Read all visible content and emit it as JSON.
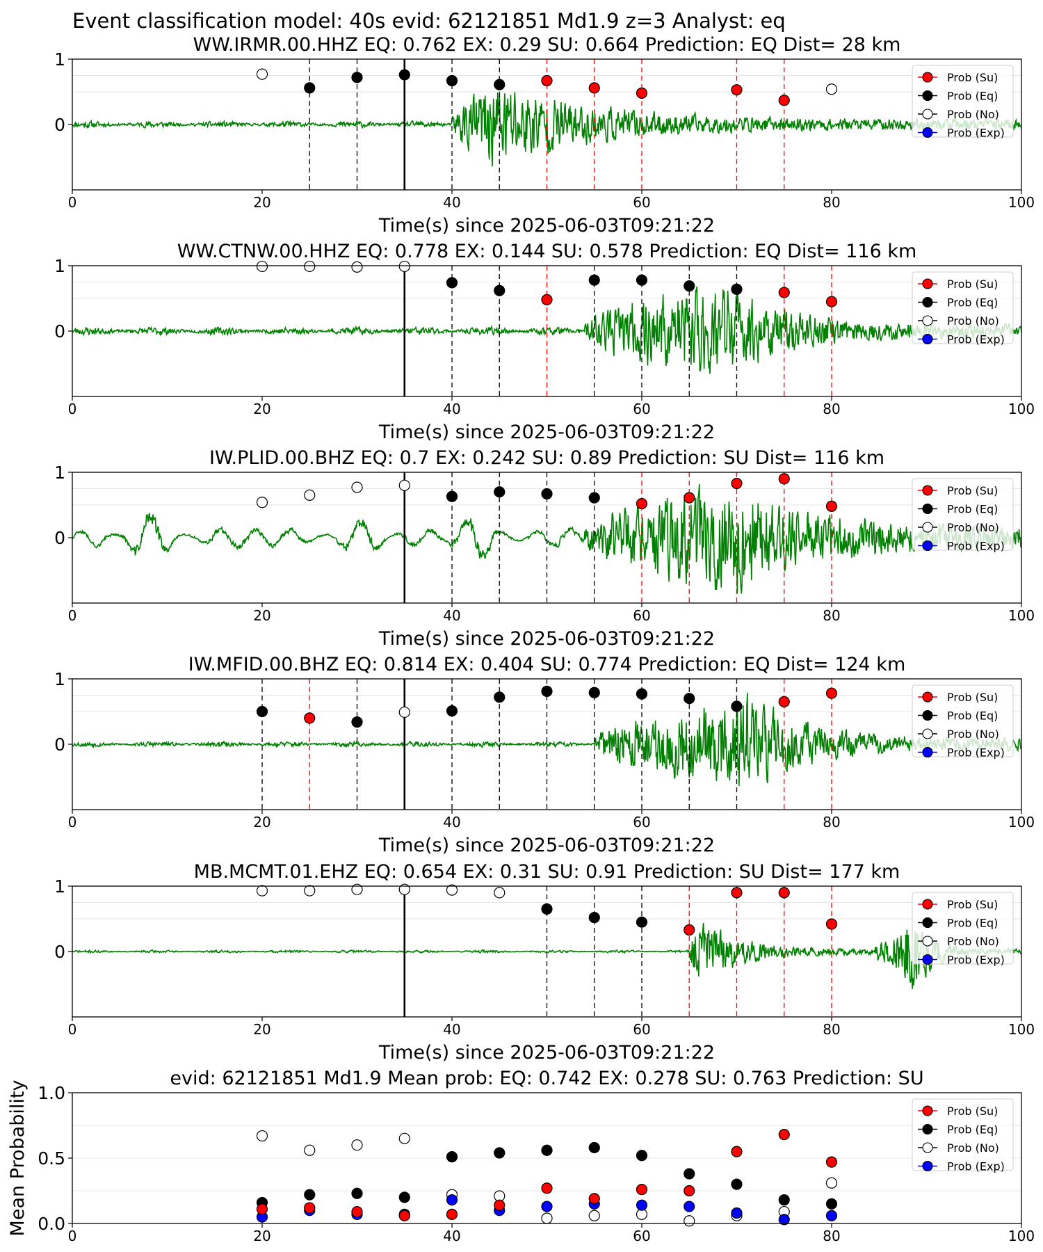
{
  "suptitle": "Event classification model: 40s evid: 62121851 Md1.9 z=3 Analyst: eq",
  "colors": {
    "trace": "#008000",
    "su": "#ff0000",
    "eq": "#000000",
    "no": "#ffffff",
    "exp": "#0000ff",
    "dashed_eq": "#000000",
    "dashed_su": "#ff0000"
  },
  "legend_labels": [
    "Prob (Su)",
    "Prob (Eq)",
    "Prob (No)",
    "Prob (Exp)"
  ],
  "x_ticks": [
    "0",
    "20",
    "40",
    "60",
    "80",
    "100"
  ],
  "chart_data": [
    {
      "type": "line",
      "title": "WW.IRMR.00.HHZ   EQ: 0.762  EX: 0.29  SU: 0.664   Prediction: EQ    Dist= 28 km",
      "xlabel": "Time(s) since 2025-06-03T09:21:22",
      "xlim": [
        0,
        100
      ],
      "y_ticks": [
        "1",
        "0"
      ],
      "ylim": [
        -1,
        1
      ],
      "legend": "upper right",
      "arrival": 35,
      "waveform": {
        "onset": 40,
        "peak": 45,
        "amp": 0.9,
        "decay": 9,
        "pre_noise": 0.05,
        "coda": 0.12,
        "seed": 11
      },
      "windows": [
        {
          "t": 25,
          "cls": "eq",
          "p": 0.56
        },
        {
          "t": 30,
          "cls": "eq",
          "p": 0.72
        },
        {
          "t": 35,
          "cls": "eq",
          "p": 0.76
        },
        {
          "t": 40,
          "cls": "eq",
          "p": 0.67
        },
        {
          "t": 45,
          "cls": "eq",
          "p": 0.61
        },
        {
          "t": 50,
          "cls": "su",
          "p": 0.67
        },
        {
          "t": 55,
          "cls": "su",
          "p": 0.56
        },
        {
          "t": 60,
          "cls": "su",
          "p": 0.48
        },
        {
          "t": 70,
          "cls": "su",
          "p": 0.53
        },
        {
          "t": 75,
          "cls": "su",
          "p": 0.37
        }
      ],
      "no_points": [
        {
          "t": 20,
          "p": 0.77
        },
        {
          "t": 80,
          "p": 0.54
        }
      ]
    },
    {
      "type": "line",
      "title": "WW.CTNW.00.HHZ   EQ: 0.778  EX: 0.144  SU: 0.578   Prediction: EQ    Dist= 116 km",
      "xlabel": "Time(s) since 2025-06-03T09:21:22",
      "xlim": [
        0,
        100
      ],
      "y_ticks": [
        "1",
        "0"
      ],
      "ylim": [
        -1,
        1
      ],
      "legend": "upper right",
      "arrival": 35,
      "waveform": {
        "onset": 54,
        "peak": 69,
        "amp": 0.95,
        "decay": 6,
        "pre_noise": 0.06,
        "coda": 0.14,
        "seed": 23
      },
      "windows": [
        {
          "t": 40,
          "cls": "eq",
          "p": 0.74
        },
        {
          "t": 45,
          "cls": "eq",
          "p": 0.62
        },
        {
          "t": 50,
          "cls": "su",
          "p": 0.48
        },
        {
          "t": 55,
          "cls": "eq",
          "p": 0.78
        },
        {
          "t": 60,
          "cls": "eq",
          "p": 0.78
        },
        {
          "t": 65,
          "cls": "eq",
          "p": 0.69
        },
        {
          "t": 70,
          "cls": "eq",
          "p": 0.64
        },
        {
          "t": 75,
          "cls": "su",
          "p": 0.59
        },
        {
          "t": 80,
          "cls": "su",
          "p": 0.45
        }
      ],
      "no_points": [
        {
          "t": 20,
          "p": 0.99
        },
        {
          "t": 25,
          "p": 0.99
        },
        {
          "t": 30,
          "p": 0.98
        },
        {
          "t": 35,
          "p": 0.99
        }
      ]
    },
    {
      "type": "line",
      "title": "IW.PLID.00.BHZ   EQ: 0.7  EX: 0.242  SU: 0.89   Prediction: SU    Dist= 116 km",
      "xlabel": "Time(s) since 2025-06-03T09:21:22",
      "xlim": [
        0,
        100
      ],
      "y_ticks": [
        "1",
        "0"
      ],
      "ylim": [
        -1,
        1
      ],
      "legend": "upper right",
      "arrival": 35,
      "waveform": {
        "onset": 54,
        "peak": 70,
        "amp": 1.0,
        "decay": 8,
        "pre_noise": 0.12,
        "coda": 0.22,
        "swell": 0.3,
        "seed": 37
      },
      "windows": [
        {
          "t": 40,
          "cls": "eq",
          "p": 0.63
        },
        {
          "t": 45,
          "cls": "eq",
          "p": 0.7
        },
        {
          "t": 50,
          "cls": "eq",
          "p": 0.67
        },
        {
          "t": 55,
          "cls": "eq",
          "p": 0.61
        },
        {
          "t": 60,
          "cls": "su",
          "p": 0.52
        },
        {
          "t": 65,
          "cls": "su",
          "p": 0.61
        },
        {
          "t": 70,
          "cls": "su",
          "p": 0.83
        },
        {
          "t": 75,
          "cls": "su",
          "p": 0.9
        },
        {
          "t": 80,
          "cls": "su",
          "p": 0.48
        }
      ],
      "no_points": [
        {
          "t": 20,
          "p": 0.54
        },
        {
          "t": 25,
          "p": 0.65
        },
        {
          "t": 30,
          "p": 0.77
        },
        {
          "t": 35,
          "p": 0.8
        }
      ]
    },
    {
      "type": "line",
      "title": "IW.MFID.00.BHZ   EQ: 0.814  EX: 0.404  SU: 0.774   Prediction: EQ    Dist= 124 km",
      "xlabel": "Time(s) since 2025-06-03T09:21:22",
      "xlim": [
        0,
        100
      ],
      "y_ticks": [
        "1",
        "0"
      ],
      "ylim": [
        -1,
        1
      ],
      "legend": "upper right",
      "arrival": 35,
      "waveform": {
        "onset": 55,
        "peak": 71,
        "amp": 1.0,
        "decay": 6,
        "pre_noise": 0.04,
        "coda": 0.12,
        "seed": 53
      },
      "windows": [
        {
          "t": 20,
          "cls": "eq",
          "p": 0.5
        },
        {
          "t": 25,
          "cls": "su",
          "p": 0.4
        },
        {
          "t": 30,
          "cls": "eq",
          "p": 0.34
        },
        {
          "t": 40,
          "cls": "eq",
          "p": 0.51
        },
        {
          "t": 45,
          "cls": "eq",
          "p": 0.72
        },
        {
          "t": 50,
          "cls": "eq",
          "p": 0.81
        },
        {
          "t": 55,
          "cls": "eq",
          "p": 0.79
        },
        {
          "t": 60,
          "cls": "eq",
          "p": 0.77
        },
        {
          "t": 65,
          "cls": "eq",
          "p": 0.7
        },
        {
          "t": 70,
          "cls": "eq",
          "p": 0.58
        },
        {
          "t": 75,
          "cls": "su",
          "p": 0.65
        },
        {
          "t": 80,
          "cls": "su",
          "p": 0.78
        }
      ],
      "no_points": [
        {
          "t": 35,
          "p": 0.49
        }
      ]
    },
    {
      "type": "line",
      "title": "MB.MCMT.01.EHZ   EQ: 0.654  EX: 0.31  SU: 0.91   Prediction: SU    Dist= 177 km",
      "xlabel": "Time(s) since 2025-06-03T09:21:22",
      "xlim": [
        0,
        100
      ],
      "y_ticks": [
        "1",
        "0"
      ],
      "ylim": [
        -1,
        1
      ],
      "legend": "upper right",
      "arrival": 35,
      "waveform": {
        "onset": 65,
        "peak": 66,
        "amp": 0.7,
        "decay": 4,
        "pre_noise": 0.02,
        "coda": 0.06,
        "second_peak": 88.5,
        "second_amp": 1.0,
        "seed": 71
      },
      "windows": [
        {
          "t": 50,
          "cls": "eq",
          "p": 0.65
        },
        {
          "t": 55,
          "cls": "eq",
          "p": 0.52
        },
        {
          "t": 60,
          "cls": "eq",
          "p": 0.45
        },
        {
          "t": 65,
          "cls": "su",
          "p": 0.33
        },
        {
          "t": 70,
          "cls": "su",
          "p": 0.9
        },
        {
          "t": 75,
          "cls": "su",
          "p": 0.9
        },
        {
          "t": 80,
          "cls": "su",
          "p": 0.42
        }
      ],
      "no_points": [
        {
          "t": 20,
          "p": 0.93
        },
        {
          "t": 25,
          "p": 0.93
        },
        {
          "t": 30,
          "p": 0.95
        },
        {
          "t": 35,
          "p": 0.95
        },
        {
          "t": 40,
          "p": 0.94
        },
        {
          "t": 45,
          "p": 0.9
        }
      ]
    },
    {
      "type": "scatter",
      "title": "evid: 62121851  Md1.9   Mean prob:   EQ: 0.742  EX: 0.278  SU: 0.763   Prediction: SU",
      "ylabel": "Mean Probability",
      "xlim": [
        0,
        100
      ],
      "ylim": [
        0,
        1
      ],
      "y_ticks": [
        "1.0",
        "0.5",
        "0.0"
      ],
      "legend": "upper right",
      "x": [
        20,
        25,
        30,
        35,
        40,
        45,
        50,
        55,
        60,
        65,
        70,
        75,
        80
      ],
      "series": [
        {
          "cls": "no",
          "values": [
            0.67,
            0.56,
            0.6,
            0.65,
            0.22,
            0.21,
            0.04,
            0.06,
            0.07,
            0.02,
            0.06,
            0.09,
            0.31
          ]
        },
        {
          "cls": "eq",
          "values": [
            0.16,
            0.22,
            0.23,
            0.2,
            0.51,
            0.54,
            0.56,
            0.58,
            0.52,
            0.38,
            0.3,
            0.18,
            0.15
          ]
        },
        {
          "cls": "exp",
          "values": [
            0.05,
            0.1,
            0.07,
            0.07,
            0.18,
            0.1,
            0.13,
            0.15,
            0.14,
            0.13,
            0.08,
            0.03,
            0.06
          ]
        },
        {
          "cls": "su",
          "values": [
            0.11,
            0.12,
            0.09,
            0.06,
            0.07,
            0.14,
            0.27,
            0.19,
            0.26,
            0.25,
            0.55,
            0.68,
            0.47
          ]
        }
      ]
    }
  ]
}
